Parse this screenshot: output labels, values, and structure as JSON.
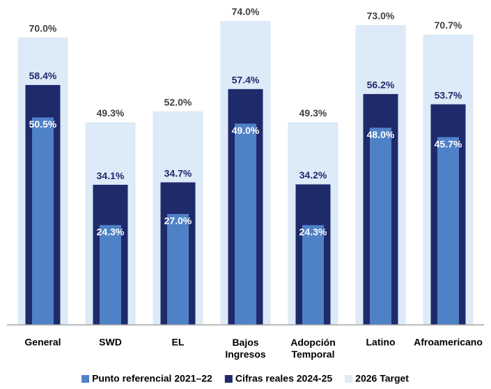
{
  "chart_data": {
    "type": "bar",
    "categories": [
      "General",
      "SWD",
      "EL",
      "Bajos Ingresos",
      "Adopción Temporal",
      "Latino",
      "Afroamericano"
    ],
    "series": [
      {
        "name": "2026 Target",
        "color": "#ddeaf7",
        "values": [
          70.0,
          49.3,
          52.0,
          74.0,
          49.3,
          73.0,
          70.7
        ],
        "value_labels": [
          "70.0%",
          "49.3%",
          "52.0%",
          "74.0%",
          "49.3%",
          "73.0%",
          "70.7%"
        ]
      },
      {
        "name": "Cifras reales 2024-25",
        "color": "#1f2a6b",
        "values": [
          58.4,
          34.1,
          34.7,
          57.4,
          34.2,
          56.2,
          53.7
        ],
        "value_labels": [
          "58.4%",
          "34.1%",
          "34.7%",
          "57.4%",
          "34.2%",
          "56.2%",
          "53.7%"
        ]
      },
      {
        "name": "Punto referencial 2021–22",
        "color": "#4f81c7",
        "values": [
          50.5,
          24.3,
          27.0,
          49.0,
          24.3,
          48.0,
          45.7
        ],
        "value_labels": [
          "50.5%",
          "24.3%",
          "27.0%",
          "49.0%",
          "24.3%",
          "48.0%",
          "45.7%"
        ]
      }
    ],
    "legend_order": [
      "Punto referencial 2021–22",
      "Cifras reales 2024-25",
      "2026 Target"
    ]
  }
}
